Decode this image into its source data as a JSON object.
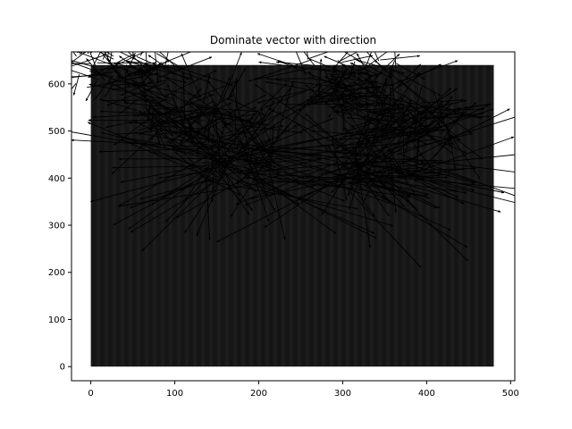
{
  "chart_data": {
    "type": "quiver",
    "title": "Dominate vector with direction",
    "xlabel": "",
    "ylabel": "",
    "xlim": [
      -23,
      505
    ],
    "ylim": [
      -30,
      668
    ],
    "xticks": [
      0,
      100,
      200,
      300,
      400,
      500
    ],
    "yticks": [
      0,
      100,
      200,
      300,
      400,
      500,
      600
    ],
    "grid": false,
    "background_region": {
      "x": [
        0,
        480
      ],
      "y": [
        0,
        640
      ],
      "color": "#151515"
    },
    "arrow_color": "#000000",
    "vector_clusters": [
      {
        "cx": 40,
        "cy": 640,
        "spread": 60,
        "length": [
          40,
          100
        ],
        "count": 90
      },
      {
        "cx": 110,
        "cy": 530,
        "spread": 55,
        "length": [
          40,
          110
        ],
        "count": 110
      },
      {
        "cx": 175,
        "cy": 430,
        "spread": 45,
        "length": [
          60,
          210
        ],
        "count": 110
      },
      {
        "cx": 310,
        "cy": 610,
        "spread": 55,
        "length": [
          40,
          100
        ],
        "count": 90
      },
      {
        "cx": 380,
        "cy": 520,
        "spread": 50,
        "length": [
          40,
          110
        ],
        "count": 110
      },
      {
        "cx": 335,
        "cy": 420,
        "spread": 45,
        "length": [
          60,
          210
        ],
        "count": 110
      }
    ]
  }
}
